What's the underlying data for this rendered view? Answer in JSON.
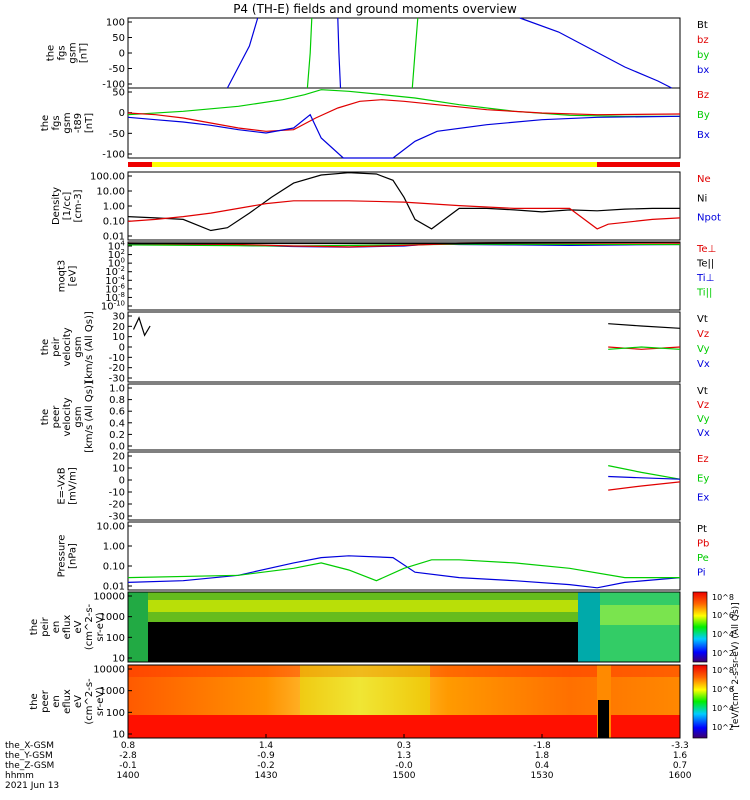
{
  "page": {
    "title": "P4 (TH-E) fields and ground moments overview",
    "date_label": "2021 Jun 13"
  },
  "chart_data": {
    "type": "line",
    "time_range": [
      "1400",
      "1600"
    ],
    "x_ticks": [
      "1400",
      "1430",
      "1500",
      "1530",
      "1600"
    ],
    "ephemeris": [
      {
        "label": "the_X-GSM",
        "values": [
          "0.8",
          "1.4",
          "0.3",
          "-1.8",
          "-3.3"
        ]
      },
      {
        "label": "the_Y-GSM",
        "values": [
          "-2.8",
          "-0.9",
          "1.3",
          "1.8",
          "1.6"
        ]
      },
      {
        "label": "the_Z-GSM",
        "values": [
          "-0.1",
          "-0.2",
          "-0.0",
          "0.4",
          "0.7"
        ]
      },
      {
        "label": "hhmm",
        "values": [
          "1400",
          "1430",
          "1500",
          "1530",
          "1600"
        ]
      }
    ],
    "panels": [
      {
        "id": "p1",
        "ylabel": [
          "the",
          "fgs",
          "gsm",
          "[nT]"
        ],
        "yticks": [
          "100",
          "50",
          "0",
          "-50",
          "-100"
        ],
        "legend": [
          {
            "t": "Bt",
            "c": "#000000"
          },
          {
            "t": "bz",
            "c": "#e00000"
          },
          {
            "t": "by",
            "c": "#00cc00"
          },
          {
            "t": "bx",
            "c": "#0000dd"
          }
        ]
      },
      {
        "id": "p2",
        "ylabel": [
          "the",
          "fgs",
          "gsm",
          "-t89",
          "[nT]"
        ],
        "yticks": [
          "50",
          "0",
          "-50",
          "-100"
        ],
        "legend": [
          {
            "t": "Bz",
            "c": "#e00000"
          },
          {
            "t": "By",
            "c": "#00cc00"
          },
          {
            "t": "Bx",
            "c": "#0000dd"
          }
        ]
      },
      {
        "id": "p3",
        "ylabel": [
          "Density",
          "[1/cc]",
          "[cm-3]"
        ],
        "yticks": [
          "100.00",
          "10.00",
          "1.00",
          "0.10",
          "0.01"
        ],
        "legend": [
          {
            "t": "Ne",
            "c": "#e00000"
          },
          {
            "t": "Ni",
            "c": "#000000"
          },
          {
            "t": "Npot",
            "c": "#0000dd"
          }
        ]
      },
      {
        "id": "p4",
        "ylabel": [
          "moqt3",
          "[eV]"
        ],
        "yticks": [
          "10^4",
          "10^2",
          "10^0",
          "10^-2",
          "10^-4",
          "10^-6",
          "10^-8",
          "10^-10"
        ],
        "legend": [
          {
            "t": "Te⊥",
            "c": "#e00000"
          },
          {
            "t": "Te||",
            "c": "#000000"
          },
          {
            "t": "Ti⊥",
            "c": "#0000dd"
          },
          {
            "t": "Ti||",
            "c": "#00cc00"
          }
        ]
      },
      {
        "id": "p5",
        "ylabel": [
          "the",
          "peir",
          "velocity",
          "gsm",
          "[km/s (All Qs)]"
        ],
        "yticks": [
          "30",
          "20",
          "10",
          "0",
          "-10",
          "-20",
          "-30"
        ],
        "legend": [
          {
            "t": "Vt",
            "c": "#000000"
          },
          {
            "t": "Vz",
            "c": "#e00000"
          },
          {
            "t": "Vy",
            "c": "#00cc00"
          },
          {
            "t": "Vx",
            "c": "#0000dd"
          }
        ]
      },
      {
        "id": "p6",
        "ylabel": [
          "the",
          "peer",
          "velocity",
          "gsm",
          "[km/s (All Qs)]"
        ],
        "yticks": [
          "1.0",
          "0.8",
          "0.6",
          "0.4",
          "0.2",
          "0.0"
        ],
        "legend": [
          {
            "t": "Vt",
            "c": "#000000"
          },
          {
            "t": "Vz",
            "c": "#e00000"
          },
          {
            "t": "Vy",
            "c": "#00cc00"
          },
          {
            "t": "Vx",
            "c": "#0000dd"
          }
        ]
      },
      {
        "id": "p7",
        "ylabel": [
          "E=-VxB",
          "[mV/m]"
        ],
        "yticks": [
          "20",
          "10",
          "0",
          "-10",
          "-20",
          "-30"
        ],
        "legend": [
          {
            "t": "Ez",
            "c": "#e00000"
          },
          {
            "t": "Ey",
            "c": "#00cc00"
          },
          {
            "t": "Ex",
            "c": "#0000dd"
          }
        ]
      },
      {
        "id": "p8",
        "ylabel": [
          "Pressure",
          "[nPa]"
        ],
        "yticks": [
          "10.00",
          "1.00",
          "0.10",
          "0.01"
        ],
        "legend": [
          {
            "t": "Pt",
            "c": "#000000"
          },
          {
            "t": "Pb",
            "c": "#e00000"
          },
          {
            "t": "Pe",
            "c": "#00cc00"
          },
          {
            "t": "Pi",
            "c": "#0000dd"
          }
        ]
      },
      {
        "id": "p9",
        "ylabel": [
          "the",
          "peir",
          "en",
          "eflux",
          "eV",
          "(cm^2-s-",
          "sr-eV)"
        ],
        "yticks": [
          "10000",
          "1000",
          "100",
          "10"
        ],
        "legend": []
      },
      {
        "id": "p10",
        "ylabel": [
          "the",
          "peer",
          "en",
          "eflux",
          "eV",
          "(cm^2-s-",
          "sr-eV)"
        ],
        "yticks": [
          "10000",
          "1000",
          "100",
          "10"
        ],
        "legend": []
      }
    ],
    "colorbar": {
      "ticks": [
        "10^8",
        "10^6",
        "10^4",
        "10^2"
      ],
      "label": "[eV/(cm^2-s-sr-eV)]",
      "label2": "[eV/(cm^2-s-sr-eV) (All Qs)]"
    },
    "series": [
      {
        "panel": "p1",
        "name": "bx",
        "color": "#0000dd",
        "points": [
          [
            0.18,
            -100
          ],
          [
            0.2,
            -40
          ],
          [
            0.22,
            20
          ],
          [
            0.235,
            100
          ]
        ]
      },
      {
        "panel": "p1",
        "name": "by",
        "color": "#00cc00",
        "points": [
          [
            0.325,
            -100
          ],
          [
            0.33,
            0
          ],
          [
            0.333,
            100
          ]
        ]
      },
      {
        "panel": "p1",
        "name": "bx",
        "color": "#0000dd",
        "points": [
          [
            0.385,
            -100
          ],
          [
            0.382,
            0
          ],
          [
            0.38,
            100
          ]
        ]
      },
      {
        "panel": "p1",
        "name": "by",
        "color": "#00cc00",
        "points": [
          [
            0.515,
            -100
          ],
          [
            0.52,
            0
          ],
          [
            0.525,
            100
          ]
        ]
      },
      {
        "panel": "p1",
        "name": "bx",
        "color": "#0000dd",
        "points": [
          [
            0.71,
            100
          ],
          [
            0.78,
            60
          ],
          [
            0.84,
            10
          ],
          [
            0.9,
            -40
          ],
          [
            0.96,
            -80
          ],
          [
            0.985,
            -100
          ]
        ]
      },
      {
        "panel": "p2",
        "name": "By",
        "color": "#00cc00",
        "points": [
          [
            0,
            10
          ],
          [
            0.1,
            20
          ],
          [
            0.2,
            35
          ],
          [
            0.28,
            55
          ],
          [
            0.32,
            70
          ],
          [
            0.35,
            85
          ],
          [
            0.4,
            80
          ],
          [
            0.45,
            72
          ],
          [
            0.52,
            60
          ],
          [
            0.6,
            40
          ],
          [
            0.7,
            20
          ],
          [
            0.8,
            8
          ],
          [
            0.9,
            5
          ],
          [
            1,
            5
          ]
        ]
      },
      {
        "panel": "p2",
        "name": "Bz",
        "color": "#e00000",
        "points": [
          [
            0,
            15
          ],
          [
            0.05,
            10
          ],
          [
            0.1,
            0
          ],
          [
            0.15,
            -15
          ],
          [
            0.2,
            -30
          ],
          [
            0.25,
            -40
          ],
          [
            0.3,
            -35
          ],
          [
            0.34,
            0
          ],
          [
            0.38,
            30
          ],
          [
            0.42,
            50
          ],
          [
            0.46,
            55
          ],
          [
            0.5,
            50
          ],
          [
            0.56,
            40
          ],
          [
            0.65,
            25
          ],
          [
            0.75,
            15
          ],
          [
            0.85,
            10
          ],
          [
            1,
            12
          ]
        ]
      },
      {
        "panel": "p2",
        "name": "Bx",
        "color": "#0000dd",
        "points": [
          [
            0,
            2
          ],
          [
            0.05,
            -5
          ],
          [
            0.1,
            -12
          ],
          [
            0.15,
            -22
          ],
          [
            0.2,
            -35
          ],
          [
            0.25,
            -45
          ],
          [
            0.3,
            -30
          ],
          [
            0.33,
            10
          ],
          [
            0.35,
            -60
          ],
          [
            0.39,
            -120
          ],
          [
            0.48,
            -120
          ],
          [
            0.52,
            -70
          ],
          [
            0.56,
            -40
          ],
          [
            0.65,
            -20
          ],
          [
            0.75,
            -5
          ],
          [
            0.85,
            2
          ],
          [
            1,
            5
          ]
        ]
      },
      {
        "panel": "p3",
        "name": "Ni",
        "color": "#000000",
        "points": [
          [
            0,
            0.3
          ],
          [
            0.05,
            0.25
          ],
          [
            0.1,
            0.2
          ],
          [
            0.15,
            0.04
          ],
          [
            0.18,
            0.06
          ],
          [
            0.22,
            0.5
          ],
          [
            0.26,
            5
          ],
          [
            0.3,
            40
          ],
          [
            0.35,
            130
          ],
          [
            0.4,
            180
          ],
          [
            0.45,
            150
          ],
          [
            0.48,
            60
          ],
          [
            0.5,
            5
          ],
          [
            0.52,
            0.2
          ],
          [
            0.55,
            0.05
          ],
          [
            0.6,
            1
          ],
          [
            0.65,
            1
          ],
          [
            0.7,
            0.8
          ],
          [
            0.75,
            0.6
          ],
          [
            0.8,
            0.8
          ],
          [
            0.85,
            0.7
          ],
          [
            0.9,
            0.9
          ],
          [
            0.95,
            1
          ],
          [
            1,
            1
          ]
        ]
      },
      {
        "panel": "p3",
        "name": "Ne",
        "color": "#e00000",
        "points": [
          [
            0,
            0.15
          ],
          [
            0.05,
            0.2
          ],
          [
            0.1,
            0.3
          ],
          [
            0.15,
            0.5
          ],
          [
            0.2,
            1
          ],
          [
            0.25,
            2
          ],
          [
            0.3,
            3
          ],
          [
            0.4,
            3
          ],
          [
            0.5,
            2.5
          ],
          [
            0.6,
            1.5
          ],
          [
            0.7,
            1
          ],
          [
            0.8,
            1
          ],
          [
            0.85,
            0.05
          ],
          [
            0.87,
            0.1
          ],
          [
            0.95,
            0.2
          ],
          [
            1,
            0.25
          ]
        ]
      },
      {
        "panel": "p4",
        "name": "Ti⊥",
        "color": "#0000dd",
        "points": [
          [
            0,
            3000
          ],
          [
            0.1,
            2500
          ],
          [
            0.2,
            2000
          ],
          [
            0.3,
            1200
          ],
          [
            0.4,
            900
          ],
          [
            0.5,
            1500
          ],
          [
            0.55,
            4000
          ],
          [
            0.6,
            3000
          ],
          [
            0.7,
            2500
          ],
          [
            0.8,
            2000
          ],
          [
            0.9,
            2500
          ],
          [
            1,
            3000
          ]
        ]
      },
      {
        "panel": "p4",
        "name": "Ti||",
        "color": "#00cc00",
        "points": [
          [
            0,
            2500
          ],
          [
            0.3,
            1500
          ],
          [
            0.5,
            2500
          ],
          [
            0.6,
            3500
          ],
          [
            1,
            3000
          ]
        ]
      },
      {
        "panel": "p4",
        "name": "Te⊥",
        "color": "#e00000",
        "points": [
          [
            0,
            5000
          ],
          [
            0.2,
            3000
          ],
          [
            0.3,
            1500
          ],
          [
            0.4,
            1000
          ],
          [
            0.5,
            2000
          ],
          [
            0.6,
            5000
          ],
          [
            0.7,
            6000
          ],
          [
            0.8,
            6000
          ],
          [
            0.9,
            6000
          ],
          [
            1,
            6000
          ]
        ]
      },
      {
        "panel": "p4",
        "name": "Te||",
        "color": "#000000",
        "points": [
          [
            0,
            5000
          ],
          [
            0.6,
            5000
          ],
          [
            0.85,
            8000
          ],
          [
            1,
            9000
          ]
        ]
      },
      {
        "panel": "p5",
        "name": "Vt",
        "color": "#000000",
        "points": [
          [
            0.01,
            15
          ],
          [
            0.02,
            25
          ],
          [
            0.03,
            10
          ],
          [
            0.04,
            18
          ]
        ]
      },
      {
        "panel": "p5",
        "name": "Vt",
        "color": "#000000",
        "points": [
          [
            0.87,
            20
          ],
          [
            0.93,
            18
          ],
          [
            1,
            16
          ]
        ]
      },
      {
        "panel": "p5",
        "name": "Vz",
        "color": "#e00000",
        "points": [
          [
            0.87,
            0
          ],
          [
            0.93,
            -2
          ],
          [
            1,
            0
          ]
        ]
      },
      {
        "panel": "p5",
        "name": "Vy",
        "color": "#00cc00",
        "points": [
          [
            0.87,
            -2
          ],
          [
            0.93,
            0
          ],
          [
            1,
            -2
          ]
        ]
      },
      {
        "panel": "p7",
        "name": "Ez",
        "color": "#e00000",
        "points": [
          [
            0.87,
            -8
          ],
          [
            0.93,
            -5
          ],
          [
            1,
            -2
          ]
        ]
      },
      {
        "panel": "p7",
        "name": "Ey",
        "color": "#00cc00",
        "points": [
          [
            0.87,
            10
          ],
          [
            0.93,
            5
          ],
          [
            1,
            0
          ]
        ]
      },
      {
        "panel": "p7",
        "name": "Ex",
        "color": "#0000dd",
        "points": [
          [
            0.87,
            2
          ],
          [
            0.93,
            1
          ],
          [
            1,
            0
          ]
        ]
      },
      {
        "panel": "p8",
        "name": "Pi",
        "color": "#0000dd",
        "points": [
          [
            0,
            0.008
          ],
          [
            0.1,
            0.01
          ],
          [
            0.2,
            0.02
          ],
          [
            0.3,
            0.1
          ],
          [
            0.35,
            0.2
          ],
          [
            0.4,
            0.25
          ],
          [
            0.48,
            0.2
          ],
          [
            0.52,
            0.03
          ],
          [
            0.6,
            0.015
          ],
          [
            0.7,
            0.01
          ],
          [
            0.8,
            0.006
          ],
          [
            0.85,
            0.004
          ],
          [
            0.9,
            0.008
          ],
          [
            1,
            0.015
          ]
        ]
      },
      {
        "panel": "p8",
        "name": "Pe",
        "color": "#00cc00",
        "points": [
          [
            0,
            0.015
          ],
          [
            0.2,
            0.02
          ],
          [
            0.3,
            0.05
          ],
          [
            0.35,
            0.1
          ],
          [
            0.4,
            0.04
          ],
          [
            0.45,
            0.01
          ],
          [
            0.5,
            0.05
          ],
          [
            0.55,
            0.15
          ],
          [
            0.6,
            0.15
          ],
          [
            0.7,
            0.1
          ],
          [
            0.8,
            0.05
          ],
          [
            0.9,
            0.015
          ],
          [
            1,
            0.015
          ]
        ]
      }
    ]
  }
}
